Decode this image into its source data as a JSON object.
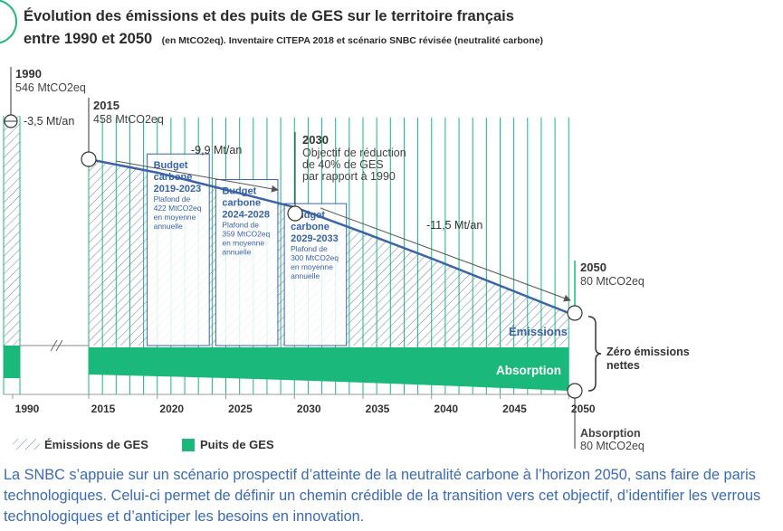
{
  "chart_data": {
    "type": "area",
    "title_line1": "Évolution des émissions et des puits de GES sur le territoire français",
    "title_line2": "entre 1990 et 2050",
    "title_unit": "(en MtCO2eq). Inventaire CITEPA 2018 et scénario SNBC révisée (neutralité carbone)",
    "x_ticks": [
      "1990",
      "2015",
      "2020",
      "2025",
      "2030",
      "2035",
      "2040",
      "2045",
      "2050"
    ],
    "emissions": {
      "name": "Émissions",
      "x": [
        2015,
        2020,
        2025,
        2030,
        2035,
        2040,
        2045,
        2050
      ],
      "y": [
        458,
        425,
        383,
        340,
        278,
        214,
        147,
        80
      ]
    },
    "absorption": {
      "name": "Absorption",
      "x": [
        2015,
        2020,
        2025,
        2030,
        2035,
        2040,
        2045,
        2050
      ],
      "y": [
        -80,
        -80,
        -80,
        -80,
        -80,
        -80,
        -80,
        -80
      ]
    },
    "annotations": {
      "y1990": {
        "year": "1990",
        "value": "546 MtCO2eq",
        "rate": "-3,5 Mt/an"
      },
      "y2015": {
        "year": "2015",
        "value": "458 MtCO2eq",
        "rate": "-9,9 Mt/an"
      },
      "y2030": {
        "year": "2030",
        "lines": [
          "Objectif de réduction",
          "de 40% de GES",
          "par rapport à 1990"
        ],
        "rate": "-11,5 Mt/an"
      },
      "y2050": {
        "year": "2050",
        "value": "80 MtCO2eq"
      }
    },
    "budgets": [
      {
        "title": [
          "Budget",
          "carbone",
          "2019-2023"
        ],
        "detail": [
          "Plafond de",
          "422 MtCO2eq",
          "en moyenne",
          "annuelle"
        ],
        "ceiling": 422,
        "from": 2019,
        "to": 2023
      },
      {
        "title": [
          "Budget",
          "carbone",
          "2024-2028"
        ],
        "detail": [
          "Plafond de",
          "359 MtCO2eq",
          "en moyenne",
          "annuelle"
        ],
        "ceiling": 359,
        "from": 2024,
        "to": 2028
      },
      {
        "title": [
          "Budget",
          "carbone",
          "2029-2033"
        ],
        "detail": [
          "Plafond de",
          "300 MtCO2eq",
          "en moyenne",
          "annuelle"
        ],
        "ceiling": 300,
        "from": 2029,
        "to": 2033
      }
    ],
    "zero_label": [
      "Zéro émissions",
      "nettes"
    ],
    "absorption_footer": [
      "Absorption",
      "80 MtCO2eq"
    ],
    "legend": [
      {
        "label": "Émissions de GES",
        "style": "hatch"
      },
      {
        "label": "Puits de GES",
        "style": "solid"
      }
    ]
  },
  "colors": {
    "green": "#1ab87a",
    "blue": "#3a63a8",
    "hatch": "#6a80a8",
    "grid": "#1ab87a"
  },
  "summary": "La SNBC s’appuie sur un scénario prospectif d’atteinte de la neutralité carbone à l’horizon 2050, sans faire de paris technologiques. Celui-ci permet de définir un chemin crédible de la transition vers cet objectif, d’identifier les verrous technologiques et d’anticiper les besoins en innovation."
}
